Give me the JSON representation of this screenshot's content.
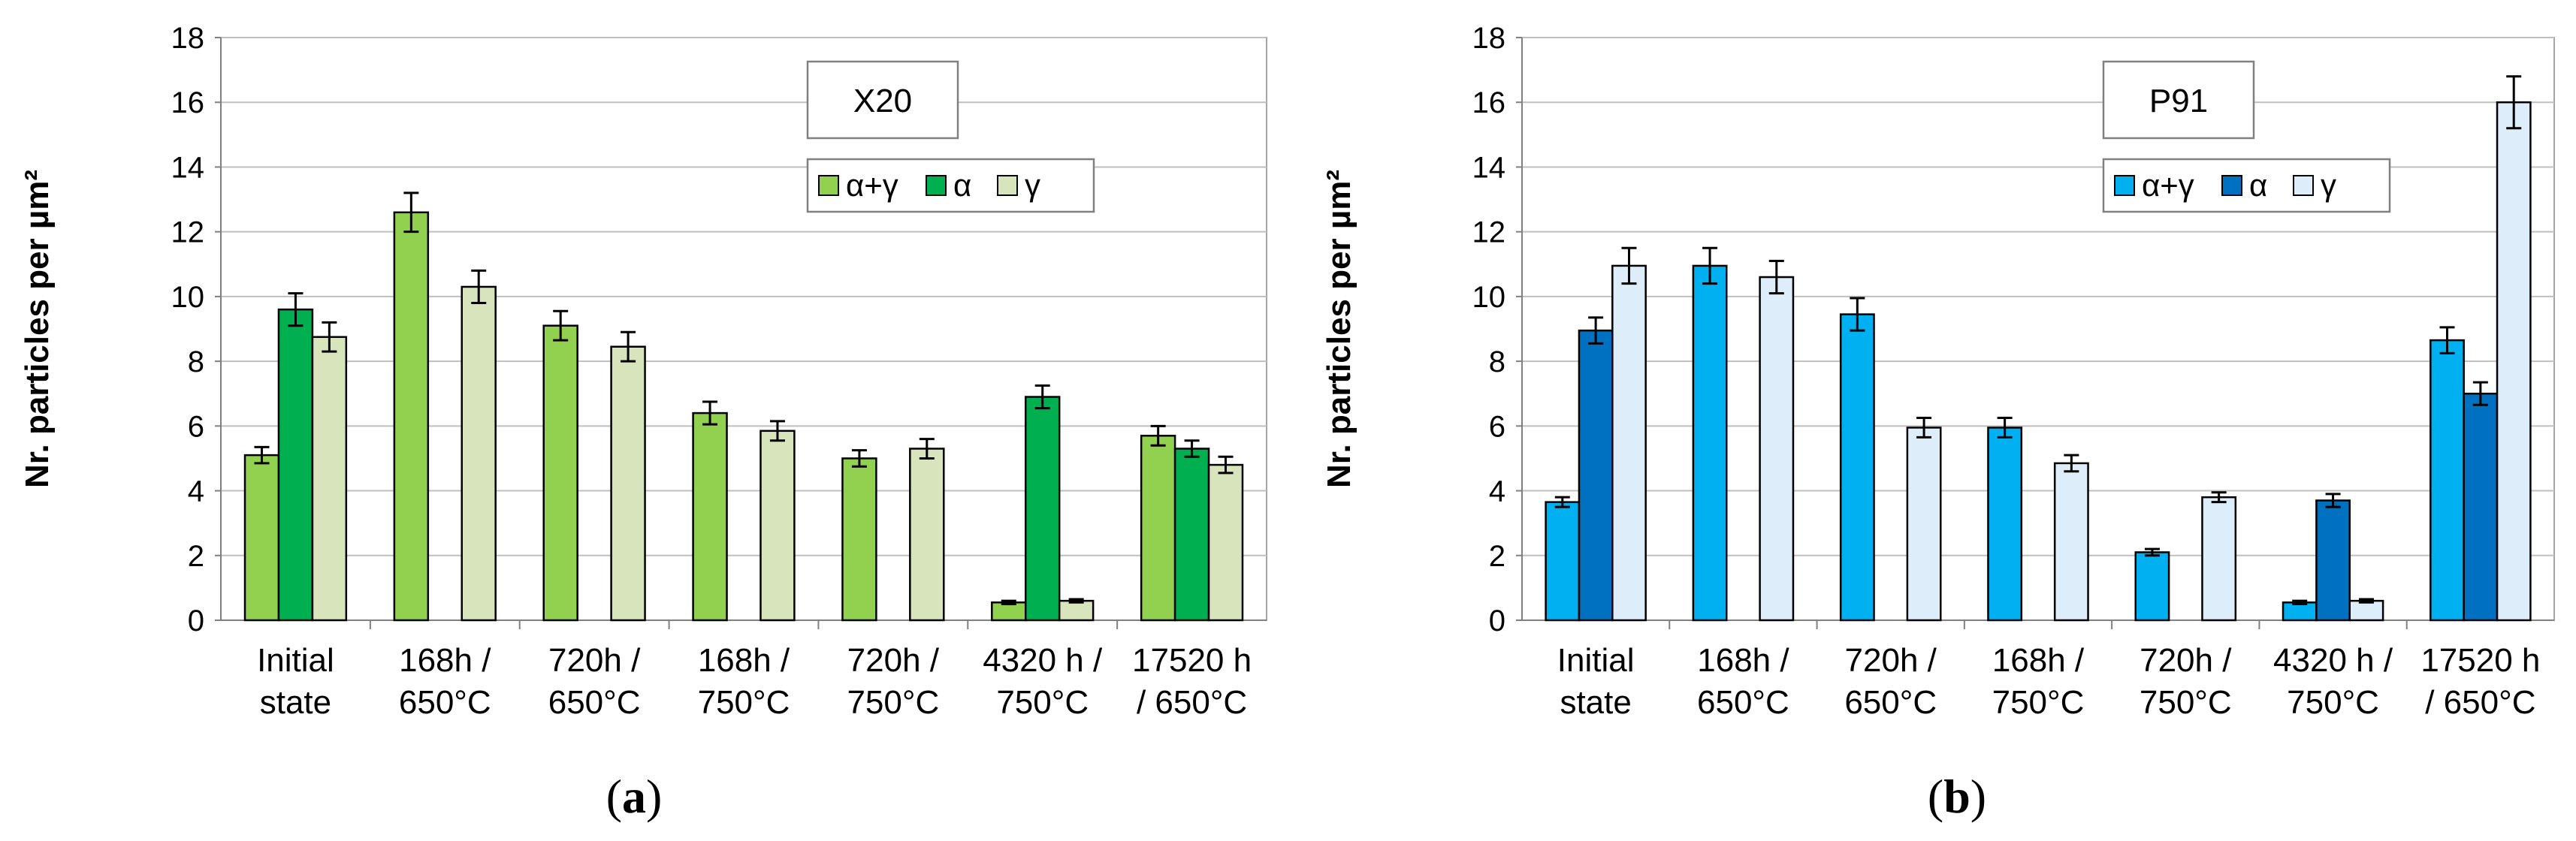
{
  "chart_data": [
    {
      "type": "bar",
      "title": "X20",
      "panel_label": "a",
      "ylabel": "Nr. particles per µm²",
      "xlabel": "",
      "ylim": [
        0,
        18
      ],
      "yticks": [
        0,
        2,
        4,
        6,
        8,
        10,
        12,
        14,
        16,
        18
      ],
      "grid": true,
      "legend_position": "top-right",
      "categories": [
        [
          "Initial",
          "state"
        ],
        [
          "168h /",
          "650°C"
        ],
        [
          "720h /",
          "650°C"
        ],
        [
          "168h /",
          "750°C"
        ],
        [
          "720h /",
          "750°C"
        ],
        [
          "4320 h /",
          "750°C"
        ],
        [
          "17520 h",
          "/ 650°C"
        ]
      ],
      "series": [
        {
          "name": "α+γ",
          "color": "#92d050",
          "values": [
            5.1,
            12.6,
            9.1,
            6.4,
            5.0,
            0.55,
            5.7
          ],
          "errors": [
            0.25,
            0.6,
            0.45,
            0.35,
            0.25,
            0.05,
            0.3
          ]
        },
        {
          "name": "α",
          "color": "#00b050",
          "values": [
            9.6,
            null,
            null,
            null,
            null,
            6.9,
            5.3
          ],
          "errors": [
            0.5,
            null,
            null,
            null,
            null,
            0.35,
            0.25
          ]
        },
        {
          "name": "γ",
          "color": "#d8e4bc",
          "values": [
            8.75,
            10.3,
            8.45,
            5.85,
            5.3,
            0.6,
            4.8
          ],
          "errors": [
            0.45,
            0.5,
            0.45,
            0.3,
            0.3,
            0.05,
            0.25
          ]
        }
      ]
    },
    {
      "type": "bar",
      "title": "P91",
      "panel_label": "b",
      "ylabel": "Nr. particles per µm²",
      "xlabel": "",
      "ylim": [
        0,
        18
      ],
      "yticks": [
        0,
        2,
        4,
        6,
        8,
        10,
        12,
        14,
        16,
        18
      ],
      "grid": true,
      "legend_position": "top-right",
      "categories": [
        [
          "Initial",
          "state"
        ],
        [
          "168h /",
          "650°C"
        ],
        [
          "720h /",
          "650°C"
        ],
        [
          "168h /",
          "750°C"
        ],
        [
          "720h /",
          "750°C"
        ],
        [
          "4320 h /",
          "750°C"
        ],
        [
          "17520 h",
          "/ 650°C"
        ]
      ],
      "series": [
        {
          "name": "α+γ",
          "color": "#00b0f0",
          "values": [
            3.65,
            10.95,
            9.45,
            5.95,
            2.1,
            0.55,
            8.65
          ],
          "errors": [
            0.15,
            0.55,
            0.5,
            0.3,
            0.1,
            0.05,
            0.4
          ]
        },
        {
          "name": "α",
          "color": "#0070c0",
          "values": [
            8.95,
            null,
            null,
            null,
            null,
            3.7,
            7.0
          ],
          "errors": [
            0.4,
            null,
            null,
            null,
            null,
            0.2,
            0.35
          ]
        },
        {
          "name": "γ",
          "color": "#ddeefa",
          "values": [
            10.95,
            10.6,
            5.95,
            4.85,
            3.8,
            0.6,
            16.0
          ],
          "errors": [
            0.55,
            0.5,
            0.3,
            0.25,
            0.15,
            0.05,
            0.8
          ]
        }
      ]
    }
  ]
}
